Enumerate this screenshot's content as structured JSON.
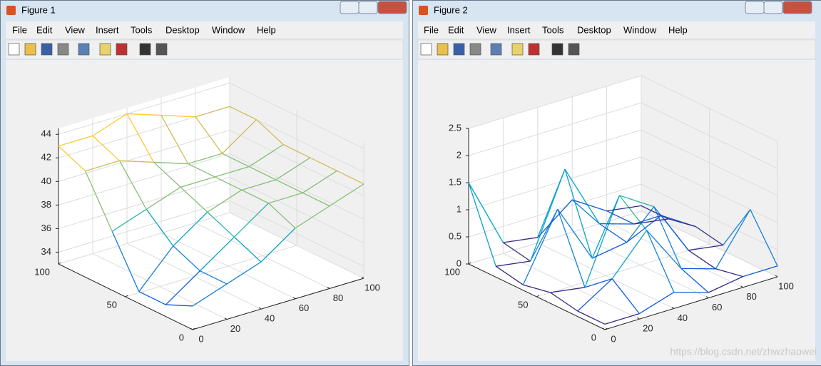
{
  "windows": [
    {
      "title": "Figure 1",
      "menu": [
        "File",
        "Edit",
        "View",
        "Insert",
        "Tools",
        "Desktop",
        "Window",
        "Help"
      ]
    },
    {
      "title": "Figure 2",
      "menu": [
        "File",
        "Edit",
        "View",
        "Insert",
        "Tools",
        "Desktop",
        "Window",
        "Help"
      ]
    }
  ],
  "watermark": "https://blog.csdn.net/zhwzhaowei",
  "chart_data": [
    {
      "type": "mesh3d",
      "x": [
        0,
        20,
        40,
        60,
        80,
        100
      ],
      "y": [
        0,
        20,
        40,
        60,
        80,
        100
      ],
      "z": [
        [
          35,
          36,
          37,
          39,
          40,
          41
        ],
        [
          34,
          36,
          38,
          40,
          40,
          41
        ],
        [
          34,
          37,
          39,
          40,
          40,
          41
        ],
        [
          38,
          39,
          40,
          40,
          40,
          41
        ],
        [
          42,
          42,
          41,
          40,
          40,
          42
        ],
        [
          43,
          43,
          44,
          43,
          42,
          42
        ]
      ],
      "xlim": [
        0,
        100
      ],
      "ylim": [
        0,
        100
      ],
      "zlim": [
        33,
        44.5
      ],
      "xticks": [
        0,
        20,
        40,
        60,
        80,
        100
      ],
      "yticks": [
        0,
        50,
        100
      ],
      "zticks": [
        34,
        36,
        38,
        40,
        42,
        44
      ],
      "grid": true
    },
    {
      "type": "mesh3d",
      "x": [
        0,
        20,
        40,
        60,
        80,
        100
      ],
      "y": [
        0,
        20,
        40,
        60,
        80,
        100
      ],
      "z": [
        [
          0.1,
          0.1,
          0.3,
          0.1,
          0.2,
          0.2
        ],
        [
          0.1,
          0.5,
          1.2,
          0.3,
          0.1,
          1.0
        ],
        [
          0.2,
          0.1,
          1.6,
          1.2,
          0.2,
          0.1
        ],
        [
          0.1,
          1.3,
          0.2,
          0.3,
          0.6,
          0.2
        ],
        [
          0.2,
          0.1,
          1.6,
          0.4,
          0.2,
          0.1
        ],
        [
          1.5,
          0.2,
          0.1,
          0.6,
          0.2,
          0.1
        ]
      ],
      "xlim": [
        0,
        100
      ],
      "ylim": [
        0,
        100
      ],
      "zlim": [
        0,
        2.5
      ],
      "xticks": [
        0,
        20,
        40,
        60,
        80,
        100
      ],
      "yticks": [
        0,
        50,
        100
      ],
      "zticks": [
        0,
        0.5,
        1,
        1.5,
        2,
        2.5
      ],
      "grid": true
    }
  ]
}
